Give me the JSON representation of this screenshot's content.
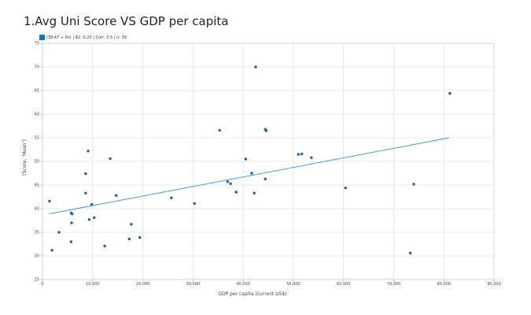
{
  "title": "1.Avg Uni Score VS GDP per capita",
  "legend_text": "(38.47 + 0x) | R2: 0.25 | Corr: 0.5 | n: 39",
  "colors": {
    "point": "#1f5f9f",
    "trend": "#2f8fe0",
    "legend": "#1f6fd0",
    "grid": "#e3e3e3",
    "plot_border": "#bbbbbb"
  },
  "chart_data": {
    "type": "scatter",
    "title": "1.Avg Uni Score VS GDP per capita",
    "xlabel": "GDP per capita (current US$)",
    "ylabel": "[Score, ʼMeanʼ]",
    "xlim": [
      0,
      90000
    ],
    "ylim": [
      25,
      75
    ],
    "x_ticks": [
      0,
      10000,
      20000,
      30000,
      40000,
      50000,
      60000,
      70000,
      80000,
      90000
    ],
    "x_tick_labels": [
      "0",
      "10,000",
      "20,000",
      "30,000",
      "40,000",
      "50,000",
      "60,000",
      "70,000",
      "80,000",
      "90,000"
    ],
    "y_ticks": [
      25,
      30,
      35,
      40,
      45,
      50,
      55,
      60,
      65,
      70,
      75
    ],
    "y_tick_labels": [
      "25",
      "30",
      "35",
      "40",
      "45",
      "50",
      "55",
      "60",
      "65",
      "70",
      "75"
    ],
    "grid": true,
    "legend_position": "top-left",
    "trendline": {
      "x": [
        1300,
        81000
      ],
      "y": [
        38.9,
        55.0
      ]
    },
    "points": [
      {
        "x": 1400,
        "y": 41.6
      },
      {
        "x": 1900,
        "y": 31.2
      },
      {
        "x": 3300,
        "y": 35.0
      },
      {
        "x": 5700,
        "y": 39.1
      },
      {
        "x": 5900,
        "y": 38.9
      },
      {
        "x": 5800,
        "y": 37.0
      },
      {
        "x": 5700,
        "y": 33.0
      },
      {
        "x": 8600,
        "y": 47.4
      },
      {
        "x": 8600,
        "y": 43.3
      },
      {
        "x": 9100,
        "y": 52.2
      },
      {
        "x": 9300,
        "y": 37.7
      },
      {
        "x": 9800,
        "y": 40.9
      },
      {
        "x": 10300,
        "y": 38.1
      },
      {
        "x": 12400,
        "y": 32.1
      },
      {
        "x": 13500,
        "y": 50.6
      },
      {
        "x": 14700,
        "y": 42.8
      },
      {
        "x": 17300,
        "y": 33.6
      },
      {
        "x": 17700,
        "y": 36.7
      },
      {
        "x": 19400,
        "y": 33.9
      },
      {
        "x": 25700,
        "y": 42.3
      },
      {
        "x": 30300,
        "y": 41.1
      },
      {
        "x": 35300,
        "y": 56.6
      },
      {
        "x": 36900,
        "y": 45.7
      },
      {
        "x": 37500,
        "y": 45.3
      },
      {
        "x": 38600,
        "y": 43.5
      },
      {
        "x": 40500,
        "y": 50.5
      },
      {
        "x": 41700,
        "y": 47.5
      },
      {
        "x": 42200,
        "y": 43.3
      },
      {
        "x": 42500,
        "y": 70.0
      },
      {
        "x": 44400,
        "y": 56.8
      },
      {
        "x": 44600,
        "y": 56.5
      },
      {
        "x": 44400,
        "y": 46.3
      },
      {
        "x": 51000,
        "y": 51.5
      },
      {
        "x": 51700,
        "y": 51.6
      },
      {
        "x": 53600,
        "y": 50.8
      },
      {
        "x": 60400,
        "y": 44.4
      },
      {
        "x": 73300,
        "y": 30.6
      },
      {
        "x": 74000,
        "y": 45.2
      },
      {
        "x": 81200,
        "y": 64.4
      }
    ]
  }
}
